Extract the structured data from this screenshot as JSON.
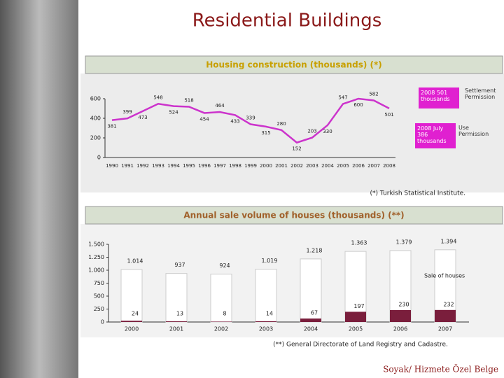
{
  "title": "Residential Buildings",
  "footer": "Soyak/ Hizmete Özel Belge",
  "chart_data": [
    {
      "type": "line",
      "title": "Housing construction (thousands) (*)",
      "categories": [
        "1990",
        "1991",
        "1992",
        "1993",
        "1994",
        "1995",
        "1996",
        "1997",
        "1998",
        "1999",
        "2000",
        "2001",
        "2002",
        "2003",
        "2004",
        "2005",
        "2006",
        "2007",
        "2008"
      ],
      "values": [
        381,
        399,
        473,
        548,
        524,
        518,
        454,
        464,
        433,
        339,
        315,
        280,
        152,
        203,
        330,
        547,
        600,
        582,
        501
      ],
      "color": "#cc33cc",
      "ylim": [
        0,
        600
      ],
      "yticks": [
        0,
        200,
        400,
        600
      ],
      "annotations": [
        {
          "text": "2008 501 thousands",
          "label": "Settlement Permission"
        },
        {
          "text": "2008 July 386 thousands",
          "label": "Use Permission"
        }
      ],
      "note": "(*) Turkish Statistical Institute."
    },
    {
      "type": "bar",
      "title": "Annual sale volume of houses (thousands) (**)",
      "categories": [
        "2000",
        "2001",
        "2002",
        "2003",
        "2004",
        "2005",
        "2006",
        "2007"
      ],
      "series": [
        {
          "name": "Sale of houses",
          "color": "#ffffff",
          "values": [
            1014,
            937,
            924,
            1019,
            1218,
            1363,
            1379,
            1394
          ],
          "value_labels": [
            "1.014",
            "937",
            "924",
            "1.019",
            "1.218",
            "1.363",
            "1.379",
            "1.394"
          ]
        },
        {
          "color": "#7a1e3c",
          "values": [
            24,
            13,
            8,
            14,
            67,
            197,
            230,
            232
          ]
        }
      ],
      "ylim": [
        0,
        1500
      ],
      "yticks": [
        0,
        250,
        500,
        750,
        {
          "value": 1000,
          "label": "1.000"
        },
        {
          "value": 1250,
          "label": "1.250"
        },
        {
          "value": 1500,
          "label": "1.500"
        }
      ],
      "note": "(**) General Directorate of Land Registry and Cadastre."
    }
  ]
}
